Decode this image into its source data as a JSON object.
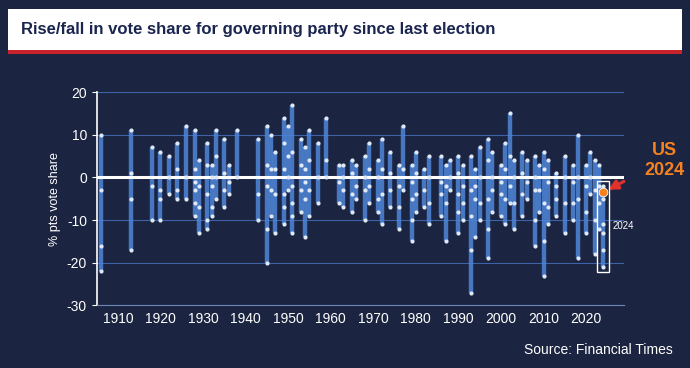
{
  "chart_data": {
    "type": "range",
    "title": "Rise/fall in vote share for governing party since last election",
    "y_label": "% pts vote share",
    "source": "Source: Financial Times",
    "x": [
      1906,
      1913,
      1918,
      1920,
      1922,
      1924,
      1926,
      1928,
      1929,
      1931,
      1932,
      1933,
      1935,
      1936,
      1938,
      1943,
      1945,
      1946,
      1947,
      1949,
      1950,
      1951,
      1953,
      1954,
      1955,
      1957,
      1959,
      1962,
      1963,
      1965,
      1966,
      1968,
      1969,
      1971,
      1972,
      1974,
      1976,
      1977,
      1979,
      1980,
      1982,
      1983,
      1986,
      1987,
      1988,
      1990,
      1991,
      1993,
      1994,
      1995,
      1997,
      1998,
      2000,
      2001,
      2002,
      2003,
      2005,
      2006,
      2008,
      2009,
      2010,
      2011,
      2013,
      2015,
      2017,
      2018,
      2020,
      2021,
      2022,
      2023,
      2024
    ],
    "values": [
      [
        10,
        -3,
        -16,
        -22
      ],
      [
        11,
        1,
        -5,
        -17
      ],
      [
        7,
        -2,
        -10
      ],
      [
        6,
        -3,
        -5,
        -10
      ],
      [
        5,
        0,
        -4
      ],
      [
        8,
        2,
        -3,
        -5
      ],
      [
        12,
        0,
        -5
      ],
      [
        11,
        2,
        -1,
        -3,
        -6,
        -9
      ],
      [
        4,
        -2,
        -7,
        -13
      ],
      [
        8,
        3,
        -4,
        -10,
        -12
      ],
      [
        3,
        0,
        -2,
        -7,
        -9
      ],
      [
        11,
        5,
        0,
        -5
      ],
      [
        9,
        1,
        -3,
        -7
      ],
      [
        3,
        -1,
        -4
      ],
      [
        11,
        0
      ],
      [
        9,
        -4,
        -10
      ],
      [
        12,
        3,
        -2,
        -12,
        -20
      ],
      [
        10,
        2,
        -3,
        -9
      ],
      [
        6,
        2,
        -4,
        -13
      ],
      [
        14,
        8,
        2,
        -4,
        -7,
        -11
      ],
      [
        12,
        5,
        0,
        -3
      ],
      [
        17,
        6,
        -2,
        -6,
        -9,
        -13
      ],
      [
        9,
        3,
        -3,
        -8
      ],
      [
        7,
        2,
        -1,
        -5,
        -14
      ],
      [
        11,
        4,
        -3,
        -9
      ],
      [
        8,
        0,
        -6
      ],
      [
        14,
        4,
        0
      ],
      [
        3,
        -1,
        -6
      ],
      [
        3,
        0,
        -3,
        -7
      ],
      [
        4,
        1,
        -4,
        -8
      ],
      [
        3,
        -2,
        -5
      ],
      [
        5,
        0,
        -3,
        -10
      ],
      [
        8,
        2,
        -2,
        -6
      ],
      [
        4,
        0,
        -5,
        -8
      ],
      [
        9,
        2,
        -4,
        -11
      ],
      [
        6,
        1,
        -3,
        -7
      ],
      [
        3,
        -2,
        -7,
        -12
      ],
      [
        12,
        2,
        -3
      ],
      [
        3,
        -1,
        -5,
        -10,
        -15
      ],
      [
        6,
        1,
        -4,
        -8
      ],
      [
        2,
        -3,
        -7
      ],
      [
        5,
        0,
        -6,
        -11
      ],
      [
        5,
        -1,
        -4,
        -9
      ],
      [
        3,
        -2,
        -6,
        -15
      ],
      [
        4,
        0,
        -3
      ],
      [
        5,
        1,
        -4,
        -8,
        -13
      ],
      [
        3,
        -2,
        -6,
        -10
      ],
      [
        5,
        -3,
        -9,
        -17,
        -27
      ],
      [
        2,
        -2,
        -5,
        -14
      ],
      [
        7,
        0,
        -6,
        -10
      ],
      [
        9,
        4,
        -5,
        -12,
        -19
      ],
      [
        6,
        0,
        -3,
        -8
      ],
      [
        3,
        -1,
        -4,
        -9
      ],
      [
        8,
        2,
        -5,
        -11
      ],
      [
        15,
        5,
        -2,
        -6
      ],
      [
        4,
        0,
        -6,
        -12
      ],
      [
        6,
        1,
        -4,
        -9
      ],
      [
        4,
        -1,
        -5
      ],
      [
        5,
        0,
        -3,
        -10,
        -16
      ],
      [
        3,
        -3,
        -8
      ],
      [
        6,
        2,
        -6,
        -15,
        -23
      ],
      [
        4,
        -1,
        -7,
        -11
      ],
      [
        1,
        -2,
        -5,
        -9
      ],
      [
        5,
        0,
        -6,
        -13
      ],
      [
        3,
        -1,
        -6,
        -10
      ],
      [
        10,
        0,
        -5,
        -19
      ],
      [
        3,
        -2,
        -8,
        -13
      ],
      [
        6,
        0,
        -4
      ],
      [
        4,
        -3,
        -10,
        -18
      ],
      [
        3,
        -2,
        -6,
        -12
      ],
      [
        -2,
        -5,
        -11,
        -13,
        -17,
        -21
      ]
    ],
    "color": "#4f86d9",
    "highlight": {
      "label": "US\n2024",
      "x": 2024,
      "value": -3.5,
      "color": "#f5821f",
      "year_label": "2024"
    },
    "baseline": 0,
    "xlim": [
      1905,
      2029
    ],
    "ylim": [
      -30,
      20
    ],
    "xticks": [
      1910,
      1920,
      1930,
      1940,
      1950,
      1960,
      1970,
      1980,
      1990,
      2000,
      2010,
      2020
    ],
    "yticks": [
      -30,
      -20,
      -10,
      0,
      10,
      20
    ],
    "grid": true
  }
}
